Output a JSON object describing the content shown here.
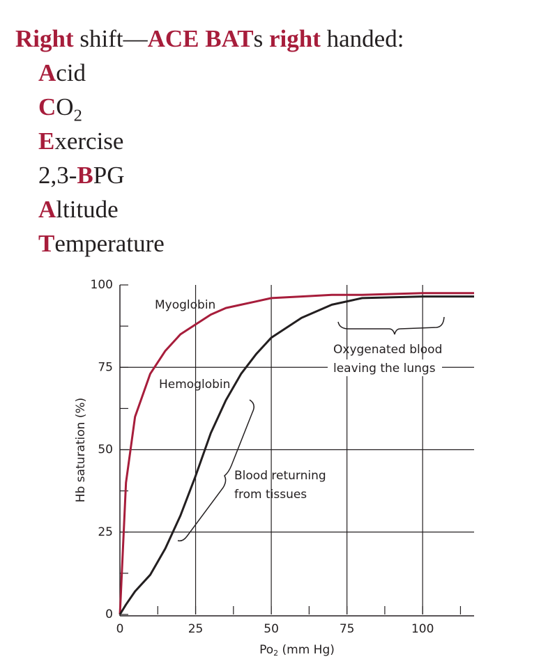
{
  "heading": [
    {
      "text": "Right",
      "accent": true
    },
    {
      "text": " shift—"
    },
    {
      "text": "ACE BAT",
      "accent": true
    },
    {
      "text": "s "
    },
    {
      "text": "right",
      "accent": true
    },
    {
      "text": " handed:"
    }
  ],
  "items": [
    [
      {
        "text": "A",
        "accent": true
      },
      {
        "text": "cid"
      }
    ],
    [
      {
        "text": "C",
        "accent": true
      },
      {
        "text": "O"
      },
      {
        "text": "2",
        "sub": true
      }
    ],
    [
      {
        "text": "E",
        "accent": true
      },
      {
        "text": "xercise"
      }
    ],
    [
      {
        "text": "2,3-"
      },
      {
        "text": "B",
        "accent": true
      },
      {
        "text": "PG"
      }
    ],
    [
      {
        "text": "A",
        "accent": true
      },
      {
        "text": "ltitude"
      }
    ],
    [
      {
        "text": "T",
        "accent": true
      },
      {
        "text": "emperature"
      }
    ]
  ],
  "chart_data": {
    "type": "line",
    "y_label": "Hb saturation (%)",
    "x_label": [
      {
        "text": "Po"
      },
      {
        "text": "2",
        "sub": true
      },
      {
        "text": " (mm Hg)"
      }
    ],
    "x": [
      0,
      2,
      5,
      10,
      15,
      20,
      25,
      30,
      35,
      40,
      45,
      50,
      60,
      70,
      80,
      100,
      117
    ],
    "series": [
      {
        "name": "Myoglobin",
        "color": "#a71d3b",
        "values": [
          0,
          40,
          60,
          73,
          80,
          85,
          88,
          91,
          93,
          94,
          95,
          96,
          96.5,
          97,
          97,
          97.5,
          97.5
        ]
      },
      {
        "name": "Hemoglobin",
        "color": "#231f20",
        "values": [
          0,
          3,
          7,
          12,
          20,
          30,
          42,
          55,
          65,
          73,
          79,
          84,
          90,
          94,
          96,
          96.5,
          96.5
        ]
      }
    ],
    "xlim": [
      0,
      117
    ],
    "ylim": [
      0,
      100
    ],
    "xticks": [
      0,
      25,
      50,
      75,
      100
    ],
    "yticks": [
      0,
      25,
      50,
      75,
      100
    ],
    "xminorticks": [
      12.5,
      37.5,
      62.5,
      87.5,
      112.5
    ],
    "yminorticks": [
      12.5,
      37.5,
      62.5,
      87.5
    ],
    "grid": true,
    "annotations": [
      [
        "Oxygenated blood",
        "leaving the lungs"
      ],
      [
        "Blood returning",
        "from tissues"
      ]
    ]
  }
}
